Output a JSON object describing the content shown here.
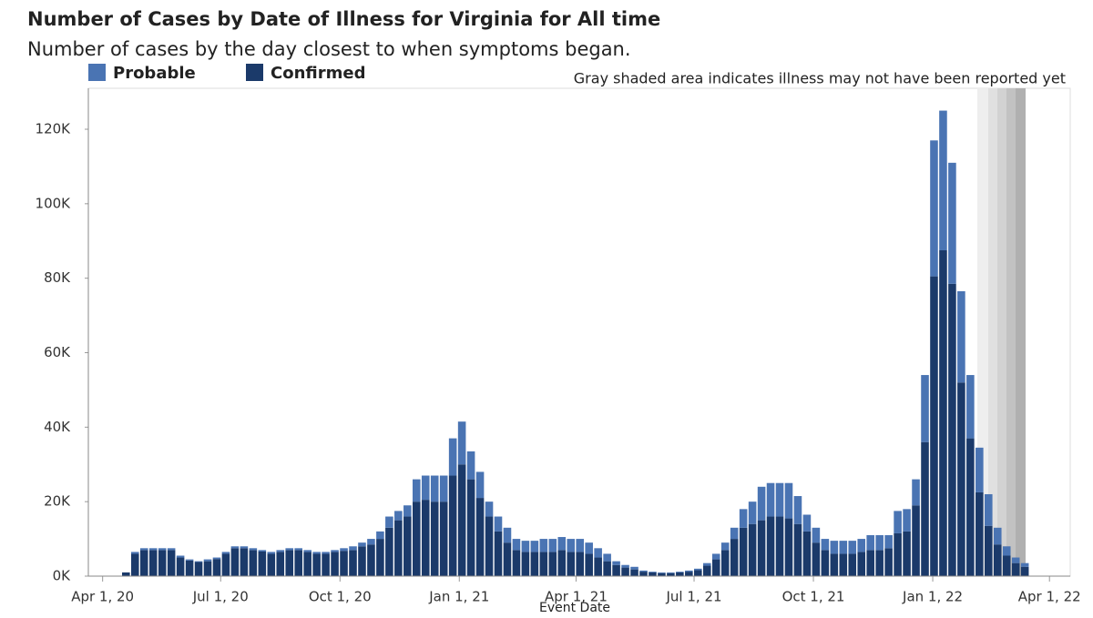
{
  "chart_data": {
    "type": "stacked_bar",
    "title": "Number of Cases by Date of Illness for Virginia for All time",
    "subtitle": "Number of cases by the day closest to when symptoms began.",
    "annotation": "Gray shaded area indicates illness may not have been reported yet",
    "x_label": "Event Date",
    "x": [
      "2020-04-19",
      "2020-04-26",
      "2020-05-03",
      "2020-05-10",
      "2020-05-17",
      "2020-05-24",
      "2020-05-31",
      "2020-06-07",
      "2020-06-14",
      "2020-06-21",
      "2020-06-28",
      "2020-07-05",
      "2020-07-12",
      "2020-07-19",
      "2020-07-26",
      "2020-08-02",
      "2020-08-09",
      "2020-08-16",
      "2020-08-23",
      "2020-08-30",
      "2020-09-06",
      "2020-09-13",
      "2020-09-20",
      "2020-09-27",
      "2020-10-04",
      "2020-10-11",
      "2020-10-18",
      "2020-10-25",
      "2020-11-01",
      "2020-11-08",
      "2020-11-15",
      "2020-11-22",
      "2020-11-29",
      "2020-12-06",
      "2020-12-13",
      "2020-12-20",
      "2020-12-27",
      "2021-01-03",
      "2021-01-10",
      "2021-01-17",
      "2021-01-24",
      "2021-01-31",
      "2021-02-07",
      "2021-02-14",
      "2021-02-21",
      "2021-02-28",
      "2021-03-07",
      "2021-03-14",
      "2021-03-21",
      "2021-03-28",
      "2021-04-04",
      "2021-04-11",
      "2021-04-18",
      "2021-04-25",
      "2021-05-02",
      "2021-05-09",
      "2021-05-16",
      "2021-05-23",
      "2021-05-30",
      "2021-06-06",
      "2021-06-13",
      "2021-06-20",
      "2021-06-27",
      "2021-07-04",
      "2021-07-11",
      "2021-07-18",
      "2021-07-25",
      "2021-08-01",
      "2021-08-08",
      "2021-08-15",
      "2021-08-22",
      "2021-08-29",
      "2021-09-05",
      "2021-09-12",
      "2021-09-19",
      "2021-09-26",
      "2021-10-03",
      "2021-10-10",
      "2021-10-17",
      "2021-10-24",
      "2021-10-31",
      "2021-11-07",
      "2021-11-14",
      "2021-11-21",
      "2021-11-28",
      "2021-12-05",
      "2021-12-12",
      "2021-12-19",
      "2021-12-26",
      "2022-01-02",
      "2022-01-09",
      "2022-01-16",
      "2022-01-23",
      "2022-01-30",
      "2022-02-06",
      "2022-02-13",
      "2022-02-20",
      "2022-02-27",
      "2022-03-06",
      "2022-03-13"
    ],
    "series": [
      {
        "name": "Probable",
        "color": "#4a74b3",
        "values": [
          0,
          500,
          500,
          500,
          500,
          500,
          500,
          300,
          200,
          500,
          400,
          500,
          500,
          500,
          500,
          400,
          500,
          500,
          500,
          500,
          500,
          500,
          500,
          500,
          700,
          1000,
          1000,
          1500,
          2000,
          3000,
          2500,
          3000,
          6000,
          6500,
          7000,
          7000,
          10000,
          11500,
          7500,
          7000,
          4000,
          4000,
          4000,
          3000,
          3000,
          3000,
          3500,
          3500,
          3500,
          3500,
          3500,
          3000,
          2500,
          2000,
          1000,
          700,
          700,
          300,
          200,
          200,
          200,
          200,
          300,
          400,
          700,
          1500,
          2000,
          3000,
          5000,
          6000,
          9000,
          9000,
          9000,
          9500,
          7500,
          4500,
          4000,
          3000,
          3500,
          3500,
          3500,
          3500,
          4000,
          4000,
          3500,
          6000,
          6000,
          7000,
          18000,
          36500,
          37500,
          32500,
          24500,
          17000,
          12000,
          8500,
          4500,
          2500,
          1500,
          1000
        ]
      },
      {
        "name": "Confirmed",
        "color": "#1b3a6a",
        "values": [
          1000,
          6000,
          7000,
          7000,
          7000,
          7000,
          5000,
          4200,
          3800,
          4000,
          4600,
          6000,
          7500,
          7500,
          7000,
          6600,
          6000,
          6500,
          7000,
          7000,
          6500,
          6000,
          6000,
          6500,
          6800,
          7000,
          8000,
          8500,
          10000,
          13000,
          15000,
          16000,
          20000,
          20500,
          20000,
          20000,
          27000,
          30000,
          26000,
          21000,
          16000,
          12000,
          9000,
          7000,
          6500,
          6500,
          6500,
          6500,
          7000,
          6500,
          6500,
          6000,
          5000,
          4000,
          3000,
          2300,
          1800,
          1200,
          1000,
          800,
          800,
          1000,
          1200,
          1600,
          2800,
          4500,
          7000,
          10000,
          13000,
          14000,
          15000,
          16000,
          16000,
          15500,
          14000,
          12000,
          9000,
          7000,
          6000,
          6000,
          6000,
          6500,
          7000,
          7000,
          7500,
          11500,
          12000,
          19000,
          36000,
          80500,
          87500,
          78500,
          52000,
          37000,
          22500,
          13500,
          8500,
          5500,
          3500,
          2500
        ]
      }
    ],
    "xlim": [
      "2020-03-21",
      "2022-04-17"
    ],
    "xticks": [
      {
        "value": "2020-04-01",
        "label": "Apr 1, 20"
      },
      {
        "value": "2020-07-01",
        "label": "Jul 1, 20"
      },
      {
        "value": "2020-10-01",
        "label": "Oct 1, 20"
      },
      {
        "value": "2021-01-01",
        "label": "Jan 1, 21"
      },
      {
        "value": "2021-04-01",
        "label": "Apr 1, 21"
      },
      {
        "value": "2021-07-01",
        "label": "Jul 1, 21"
      },
      {
        "value": "2021-10-01",
        "label": "Oct 1, 21"
      },
      {
        "value": "2022-01-01",
        "label": "Jan 1, 22"
      },
      {
        "value": "2022-04-01",
        "label": "Apr 1, 22"
      }
    ],
    "ylim": [
      0,
      131000
    ],
    "yticks": [
      {
        "value": 0,
        "label": "0K"
      },
      {
        "value": 20000,
        "label": "20K"
      },
      {
        "value": 40000,
        "label": "40K"
      },
      {
        "value": 60000,
        "label": "60K"
      },
      {
        "value": 80000,
        "label": "80K"
      },
      {
        "value": 100000,
        "label": "100K"
      },
      {
        "value": 120000,
        "label": "120K"
      }
    ]
  }
}
